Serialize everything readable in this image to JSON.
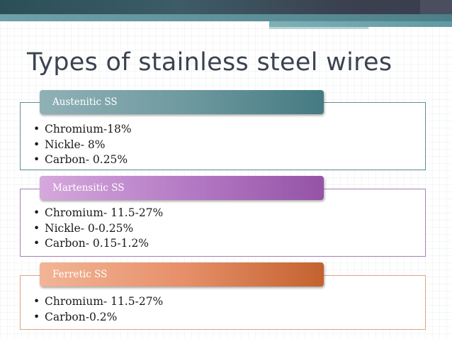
{
  "slide": {
    "title": "Types of stainless steel wires",
    "sections": [
      {
        "heading": "Austenitic SS",
        "bullet": "•",
        "items": [
          "Chromium-18%",
          "Nickle- 8%",
          "Carbon- 0.25%"
        ],
        "accent": "#457a82"
      },
      {
        "heading": "Martensitic SS",
        "bullet": "•",
        "items": [
          "Chromium- 11.5-27%",
          "Nickle- 0-0.25%",
          "Carbon- 0.15-1.2%"
        ],
        "accent": "#9553a6"
      },
      {
        "heading": "Ferretic SS",
        "bullet": "•",
        "items": [
          "Chromium- 11.5-27%",
          "Carbon-0.2%"
        ],
        "accent": "#c3622f"
      }
    ]
  }
}
